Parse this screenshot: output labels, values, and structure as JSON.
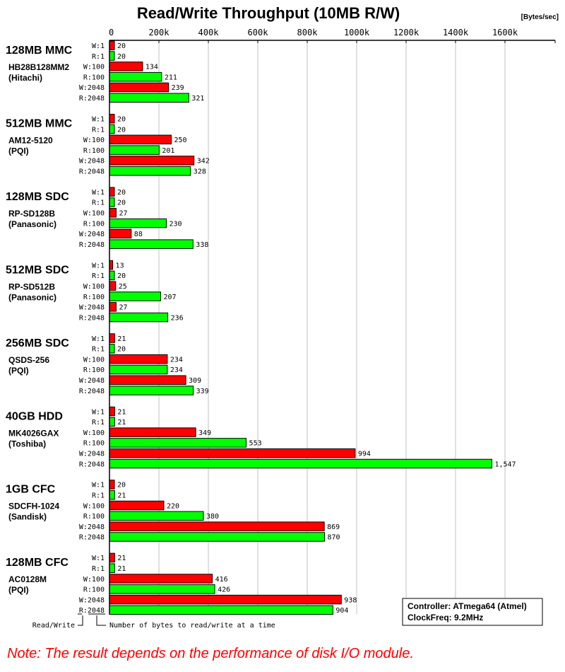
{
  "chart_data": {
    "type": "bar",
    "orientation": "horizontal",
    "title": "Read/Write Throughput (10MB R/W)",
    "unit_label": "[Bytes/sec]",
    "xlim": [
      0,
      1800
    ],
    "x_ticks": [
      "0",
      "200k",
      "400k",
      "600k",
      "800k",
      "1000k",
      "1200k",
      "1400k",
      "1600k"
    ],
    "x_tick_values": [
      0,
      200,
      400,
      600,
      800,
      1000,
      1200,
      1400,
      1600
    ],
    "grid": true,
    "row_labels": [
      "W:1",
      "R:1",
      "W:100",
      "R:100",
      "W:2048",
      "R:2048"
    ],
    "colors": {
      "write": "#ff0000",
      "read": "#00ff00"
    },
    "groups": [
      {
        "name": "128MB MMC",
        "model": "HB28B128MM2",
        "vendor": "(Hitachi)",
        "values": [
          20,
          20,
          134,
          211,
          239,
          321
        ],
        "labels": [
          "20",
          "20",
          "134",
          "211",
          "239",
          "321"
        ]
      },
      {
        "name": "512MB MMC",
        "model": "AM12-5120",
        "vendor": "(PQI)",
        "values": [
          20,
          20,
          250,
          201,
          342,
          328
        ],
        "labels": [
          "20",
          "20",
          "250",
          "201",
          "342",
          "328"
        ]
      },
      {
        "name": "128MB SDC",
        "model": "RP-SD128B",
        "vendor": "(Panasonic)",
        "values": [
          20,
          20,
          27,
          230,
          88,
          338
        ],
        "labels": [
          "20",
          "20",
          "27",
          "230",
          "88",
          "338"
        ]
      },
      {
        "name": "512MB SDC",
        "model": "RP-SD512B",
        "vendor": "(Panasonic)",
        "values": [
          13,
          20,
          25,
          207,
          27,
          236
        ],
        "labels": [
          "13",
          "20",
          "25",
          "207",
          "27",
          "236"
        ]
      },
      {
        "name": "256MB SDC",
        "model": "QSDS-256",
        "vendor": "(PQI)",
        "values": [
          21,
          20,
          234,
          234,
          309,
          339
        ],
        "labels": [
          "21",
          "20",
          "234",
          "234",
          "309",
          "339"
        ]
      },
      {
        "name": "40GB HDD",
        "model": "MK4026GAX",
        "vendor": "(Toshiba)",
        "values": [
          21,
          21,
          349,
          553,
          994,
          1547
        ],
        "labels": [
          "21",
          "21",
          "349",
          "553",
          "994",
          "1,547"
        ]
      },
      {
        "name": "1GB CFC",
        "model": "SDCFH-1024",
        "vendor": "(Sandisk)",
        "values": [
          20,
          21,
          220,
          380,
          869,
          870
        ],
        "labels": [
          "20",
          "21",
          "220",
          "380",
          "869",
          "870"
        ]
      },
      {
        "name": "128MB CFC",
        "model": "AC0128M",
        "vendor": "(PQI)",
        "values": [
          21,
          21,
          416,
          426,
          938,
          904
        ],
        "labels": [
          "21",
          "21",
          "416",
          "426",
          "938",
          "904"
        ]
      }
    ],
    "legend_notes": {
      "rw": "Read/Write",
      "bytes": "Number of bytes to read/write at a time"
    },
    "info_box": [
      "Controller: ATmega64 (Atmel)",
      "ClockFreq: 9.2MHz"
    ],
    "note": "Note: The result depends on the performance of disk I/O module."
  }
}
